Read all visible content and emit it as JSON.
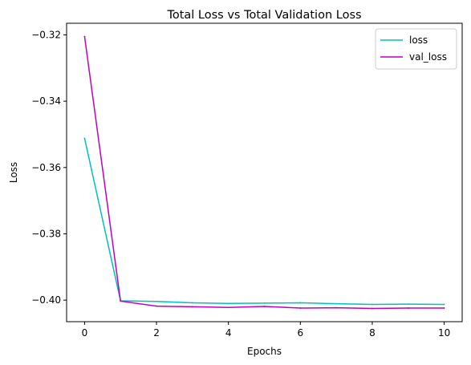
{
  "chart_data": {
    "type": "line",
    "title": "Total Loss vs Total Validation Loss",
    "xlabel": "Epochs",
    "ylabel": "Loss",
    "xlim": [
      -0.5,
      10.5
    ],
    "ylim": [
      -0.4065,
      -0.3165
    ],
    "xticks": [
      0,
      2,
      4,
      6,
      8,
      10
    ],
    "xtick_labels": [
      "0",
      "2",
      "4",
      "6",
      "8",
      "10"
    ],
    "yticks": [
      -0.4,
      -0.38,
      -0.36,
      -0.34,
      -0.32
    ],
    "ytick_labels": [
      "−0.40",
      "−0.38",
      "−0.36",
      "−0.34",
      "−0.32"
    ],
    "grid": false,
    "legend_position": "top-right",
    "x": [
      0,
      1,
      2,
      3,
      4,
      5,
      6,
      7,
      8,
      9,
      10
    ],
    "series": [
      {
        "name": "loss",
        "color": "#00bfbf",
        "values": [
          -0.3512,
          -0.4002,
          -0.4004,
          -0.4008,
          -0.401,
          -0.4009,
          -0.4008,
          -0.4011,
          -0.4013,
          -0.4012,
          -0.4013
        ]
      },
      {
        "name": "val_loss",
        "color": "#bf00bf",
        "values": [
          -0.3205,
          -0.4003,
          -0.4018,
          -0.402,
          -0.4022,
          -0.4019,
          -0.4024,
          -0.4023,
          -0.4025,
          -0.4024,
          -0.4024
        ]
      }
    ]
  }
}
